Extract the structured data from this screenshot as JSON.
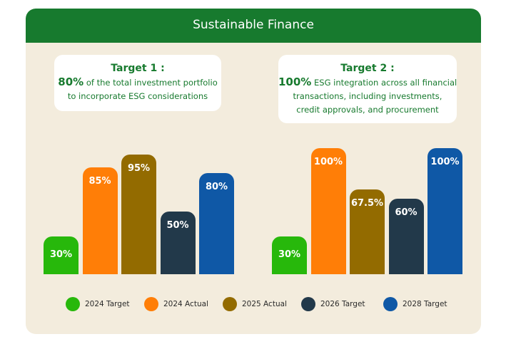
{
  "header": {
    "title": "Sustainable Finance"
  },
  "colors": {
    "header": "#177a2e",
    "panel": "#f3ecdd",
    "target_text": "#177a2e",
    "target_2024": "#27b80b",
    "actual_2024": "#ff7e07",
    "actual_2025": "#936b00",
    "target_2026": "#22394a",
    "target_2028": "#0f58a6"
  },
  "targets": [
    {
      "title": "Target 1 :",
      "highlight": "80%",
      "line1_rest": " of the total investment portfolio",
      "line2": "to incorporate ESG considerations",
      "line3": ""
    },
    {
      "title": "Target 2 :",
      "highlight": "100%",
      "line1_rest": " ESG integration across all financial",
      "line2": "transactions, including investments,",
      "line3": "credit approvals, and procurement"
    }
  ],
  "legend": [
    {
      "label": "2024 Target",
      "color": "#27b80b",
      "icon": "circle"
    },
    {
      "label": "2024 Actual",
      "color": "#ff7e07",
      "icon": "circle"
    },
    {
      "label": "2025 Actual",
      "color": "#936b00",
      "icon": "circle"
    },
    {
      "label": "2026 Target",
      "color": "#22394a",
      "icon": "circle"
    },
    {
      "label": "2028 Target",
      "color": "#0f58a6",
      "icon": "circle"
    }
  ],
  "chart_data": [
    {
      "type": "bar",
      "title": "Target 1 :",
      "categories": [
        "2024 Target",
        "2024 Actual",
        "2025 Actual",
        "2026 Target",
        "2028 Target"
      ],
      "values": [
        30,
        85,
        95,
        50,
        80
      ],
      "data_labels": [
        "30%",
        "85%",
        "95%",
        "50%",
        "80%"
      ],
      "colors": [
        "#27b80b",
        "#ff7e07",
        "#936b00",
        "#22394a",
        "#0f58a6"
      ],
      "unit": "%",
      "ylim": [
        0,
        100
      ],
      "grid": false,
      "legend": "bottom"
    },
    {
      "type": "bar",
      "title": "Target 2 :",
      "categories": [
        "2024 Target",
        "2024 Actual",
        "2025 Actual",
        "2026 Target",
        "2028 Target"
      ],
      "values": [
        30,
        100,
        67.5,
        60,
        100
      ],
      "data_labels": [
        "30%",
        "100%",
        "67.5%",
        "60%",
        "100%"
      ],
      "colors": [
        "#27b80b",
        "#ff7e07",
        "#936b00",
        "#22394a",
        "#0f58a6"
      ],
      "unit": "%",
      "ylim": [
        0,
        100
      ],
      "grid": false,
      "legend": "bottom"
    }
  ]
}
